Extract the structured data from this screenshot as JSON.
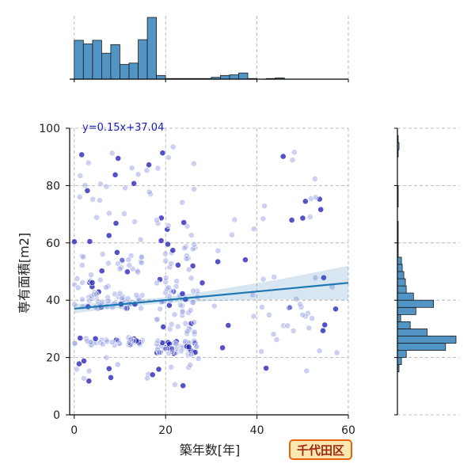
{
  "chart_data": {
    "type": "scatter",
    "badge": "千代田区",
    "xlabel": "築年数[年]",
    "ylabel": "専有面積[m2]",
    "xlim": [
      -1,
      60
    ],
    "ylim": [
      0,
      100
    ],
    "xticks": [
      0,
      20,
      40,
      60
    ],
    "yticks": [
      0,
      20,
      40,
      60,
      80,
      100
    ],
    "grid": true,
    "regression": {
      "label": "y=0.15x+37.04",
      "slope": 0.15,
      "intercept": 37.04,
      "ci_lower_at_60": 40,
      "ci_upper_at_60": 52,
      "color": "#1f77b4"
    },
    "point_color": "#1a1ab4",
    "hist_color": "#5294c4",
    "marginal_x_hist": {
      "bin_width": 2,
      "bin_starts": [
        0,
        2,
        4,
        6,
        8,
        10,
        12,
        14,
        16,
        18,
        20,
        22,
        24,
        26,
        28,
        30,
        32,
        34,
        36,
        38,
        40,
        42,
        44,
        46,
        48,
        50,
        52,
        54,
        56
      ],
      "counts": [
        63,
        57,
        63,
        42,
        56,
        24,
        26,
        64,
        100,
        6,
        1,
        1,
        1,
        1,
        1,
        3,
        6,
        7,
        10,
        1,
        0,
        1,
        2,
        0,
        0,
        0,
        0,
        0,
        0
      ]
    },
    "marginal_y_hist": {
      "bin_width": 2.5,
      "bin_starts": [
        0,
        2.5,
        5,
        7.5,
        10,
        12.5,
        15,
        17.5,
        20,
        22.5,
        25,
        27.5,
        30,
        32.5,
        35,
        37.5,
        40,
        42.5,
        45,
        47.5,
        50,
        52.5,
        55,
        57.5,
        60,
        62.5,
        65,
        67.5,
        70,
        72.5,
        75,
        77.5,
        80,
        82.5,
        85,
        87.5,
        90,
        92.5,
        95,
        97.5
      ],
      "counts": [
        0,
        0,
        0,
        0,
        0,
        0,
        2,
        5,
        11,
        60,
        73,
        37,
        16,
        4,
        23,
        45,
        20,
        11,
        10,
        8,
        6,
        5,
        1,
        1,
        1,
        1,
        1,
        0,
        0,
        1,
        1,
        1,
        0,
        0,
        0,
        0,
        1,
        2,
        1,
        0
      ]
    }
  }
}
